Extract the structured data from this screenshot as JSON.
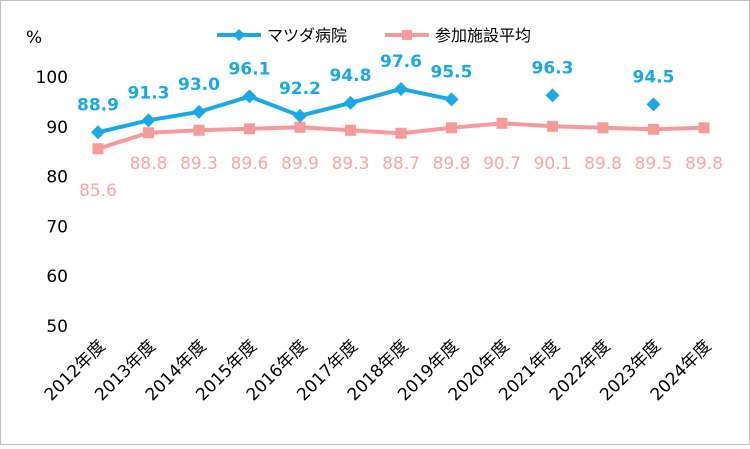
{
  "chart_data": {
    "type": "line",
    "ylabel": "%",
    "ylim": [
      50,
      100
    ],
    "yticks": [
      50,
      60,
      70,
      80,
      90,
      100
    ],
    "categories": [
      "2012年度",
      "2013年度",
      "2014年度",
      "2015年度",
      "2016年度",
      "2017年度",
      "2018年度",
      "2019年度",
      "2020年度",
      "2021年度",
      "2022年度",
      "2023年度",
      "2024年度"
    ],
    "legend_position": "top",
    "grid": false,
    "series": [
      {
        "name": "マツダ病院",
        "color": "#1aa9e8",
        "marker": "diamond",
        "values": [
          88.9,
          91.3,
          93.0,
          96.1,
          92.2,
          94.8,
          97.6,
          95.5,
          null,
          96.3,
          null,
          94.5,
          null
        ],
        "labels": [
          "88.9",
          "91.3",
          "93.0",
          "96.1",
          "92.2",
          "94.8",
          "97.6",
          "95.5",
          "",
          "96.3",
          "",
          "94.5",
          ""
        ]
      },
      {
        "name": "参加施設平均",
        "color": "#f79a9a",
        "marker": "square",
        "values": [
          85.6,
          88.8,
          89.3,
          89.6,
          89.9,
          89.3,
          88.7,
          89.8,
          90.7,
          90.1,
          89.8,
          89.5,
          89.8
        ],
        "labels": [
          "85.6",
          "88.8",
          "89.3",
          "89.6",
          "89.9",
          "89.3",
          "88.7",
          "89.8",
          "90.7",
          "90.1",
          "89.8",
          "89.5",
          "89.8"
        ]
      }
    ]
  }
}
